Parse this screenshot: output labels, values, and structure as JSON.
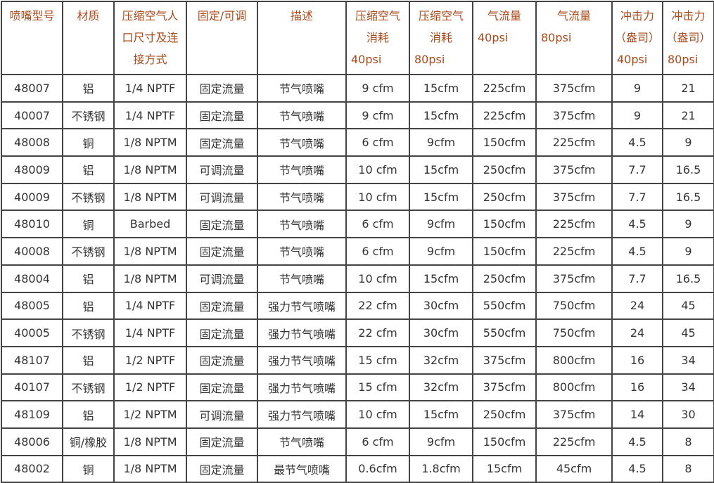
{
  "headers": [
    {
      "lines": [
        "喷嘴型号"
      ]
    },
    {
      "lines": [
        "材质"
      ]
    },
    {
      "lines": [
        "压缩空气人",
        "口尺寸及连",
        "接方式"
      ]
    },
    {
      "lines": [
        "固定/可调"
      ]
    },
    {
      "lines": [
        "描述"
      ]
    },
    {
      "lines": [
        "压缩空气",
        "消耗"
      ],
      "psi": "40psi"
    },
    {
      "lines": [
        "压缩空气",
        "消耗"
      ],
      "psi": "80psi"
    },
    {
      "lines": [
        "气流量"
      ],
      "psi": "40psi"
    },
    {
      "lines": [
        "气流量"
      ],
      "psi": "80psi"
    },
    {
      "lines": [
        "冲击力",
        "（盎司）"
      ],
      "psi": "40psi"
    },
    {
      "lines": [
        "冲击力",
        "（盎司）"
      ],
      "psi": "80psi"
    }
  ],
  "rows": [
    [
      "48007",
      "铝",
      "1/4 NPTF",
      "固定流量",
      "节气喷嘴",
      "9 cfm",
      "15cfm",
      "225cfm",
      "375cfm",
      "9",
      "21"
    ],
    [
      "40007",
      "不锈钢",
      "1/4 NPTF",
      "固定流量",
      "节气喷嘴",
      "9 cfm",
      "15cfm",
      "225cfm",
      "375cfm",
      "9",
      "21"
    ],
    [
      "48008",
      "铜",
      "1/8 NPTM",
      "固定流量",
      "节气喷嘴",
      "6 cfm",
      "9cfm",
      "150cfm",
      "225cfm",
      "4.5",
      "9"
    ],
    [
      "48009",
      "铝",
      "1/8 NPTM",
      "可调流量",
      "节气喷嘴",
      "10 cfm",
      "15cfm",
      "250cfm",
      "375cfm",
      "7.7",
      "16.5"
    ],
    [
      "40009",
      "不锈钢",
      "1/8 NPTM",
      "可调流量",
      "节气喷嘴",
      "10 cfm",
      "15cfm",
      "250cfm",
      "375cfm",
      "7.7",
      "16.5"
    ],
    [
      "48010",
      "铜",
      "Barbed",
      "固定流量",
      "节气喷嘴",
      "6 cfm",
      "9cfm",
      "150cfm",
      "225cfm",
      "4.5",
      "9"
    ],
    [
      "40008",
      "不锈钢",
      "1/8 NPTM",
      "固定流量",
      "节气喷嘴",
      "6 cfm",
      "9cfm",
      "150cfm",
      "225cfm",
      "4.5",
      "9"
    ],
    [
      "48004",
      "铝",
      "1/8 NPTM",
      "可调流量",
      "节气喷嘴",
      "10 cfm",
      "15cfm",
      "250cfm",
      "375cfm",
      "7.7",
      "16.5"
    ],
    [
      "48005",
      "铝",
      "1/4 NPTF",
      "固定流量",
      "强力节气喷嘴",
      "22 cfm",
      "30cfm",
      "550cfm",
      "750cfm",
      "24",
      "45"
    ],
    [
      "40005",
      "不锈钢",
      "1/4 NPTF",
      "固定流量",
      "强力节气喷嘴",
      "22 cfm",
      "30cfm",
      "550cfm",
      "750cfm",
      "24",
      "45"
    ],
    [
      "48107",
      "铝",
      "1/2 NPTF",
      "固定流量",
      "强力节气喷嘴",
      "15 cfm",
      "32cfm",
      "375cfm",
      "800cfm",
      "16",
      "34"
    ],
    [
      "40107",
      "不锈钢",
      "1/2 NPTF",
      "固定流量",
      "强力节气喷嘴",
      "15 cfm",
      "32cfm",
      "375cfm",
      "800cfm",
      "16",
      "34"
    ],
    [
      "48109",
      "铝",
      "1/2 NPTM",
      "可调流量",
      "强力节气喷嘴",
      "10 cfm",
      "15cfm",
      "250cfm",
      "375cfm",
      "14",
      "30"
    ],
    [
      "48006",
      "铜/橡胶",
      "1/8 NPTM",
      "固定流量",
      "节气喷嘴",
      "6 cfm",
      "9cfm",
      "150cfm",
      "225cfm",
      "4.5",
      "8"
    ],
    [
      "48002",
      "铜",
      "1/8 NPTM",
      "固定流量",
      "最节气喷嘴",
      "0.6cfm",
      "1.8cfm",
      "15cfm",
      "45cfm",
      "4.5",
      "8"
    ]
  ]
}
